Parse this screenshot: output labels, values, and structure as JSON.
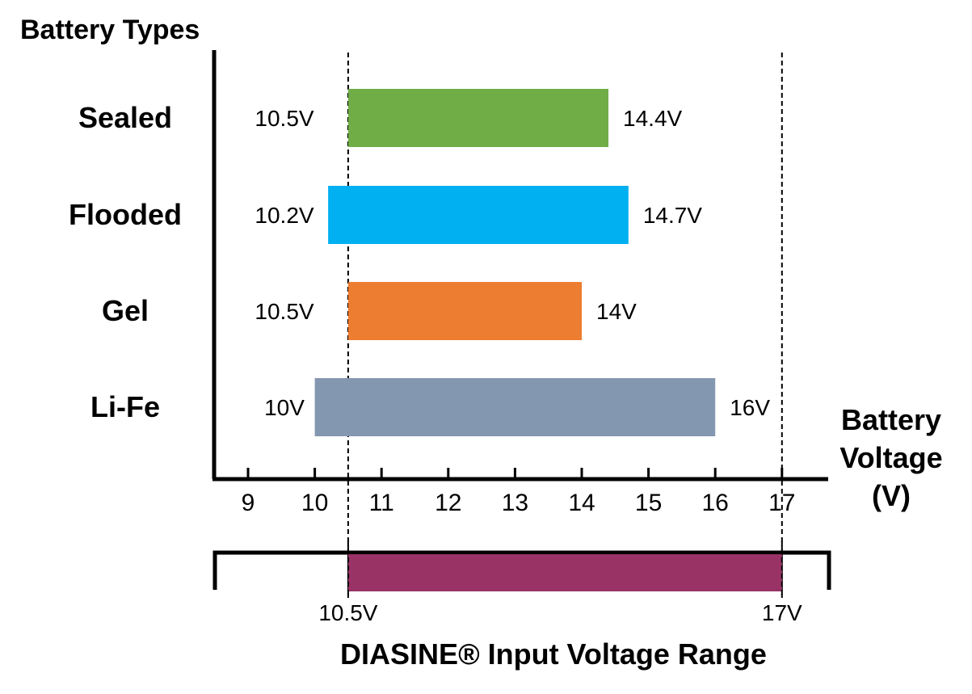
{
  "chart_data": {
    "type": "bar",
    "orientation": "horizontal",
    "title": "Battery Types",
    "xlabel_lines": [
      "Battery",
      "Voltage",
      "(V)"
    ],
    "xlim": [
      8.5,
      17.5
    ],
    "xticks": [
      9,
      10,
      11,
      12,
      13,
      14,
      15,
      16,
      17
    ],
    "categories": [
      "Sealed",
      "Flooded",
      "Gel",
      "Li-Fe"
    ],
    "ranges": [
      {
        "name": "Sealed",
        "low": 10.5,
        "high": 14.4,
        "low_label": "10.5V",
        "high_label": "14.4V",
        "color": "#70AD47"
      },
      {
        "name": "Flooded",
        "low": 10.2,
        "high": 14.7,
        "low_label": "10.2V",
        "high_label": "14.7V",
        "color": "#00B0F0"
      },
      {
        "name": "Gel",
        "low": 10.5,
        "high": 14.0,
        "low_label": "10.5V",
        "high_label": "14V",
        "color": "#ED7D31"
      },
      {
        "name": "Li-Fe",
        "low": 10.0,
        "high": 16.0,
        "low_label": "10V",
        "high_label": "16V",
        "color": "#8497B0"
      }
    ],
    "reference_lines": [
      10.5,
      17
    ],
    "input_range": {
      "low": 10.5,
      "high": 17,
      "low_label": "10.5V",
      "high_label": "17V",
      "color": "#993366",
      "caption": "DIASINE® Input Voltage Range"
    }
  }
}
